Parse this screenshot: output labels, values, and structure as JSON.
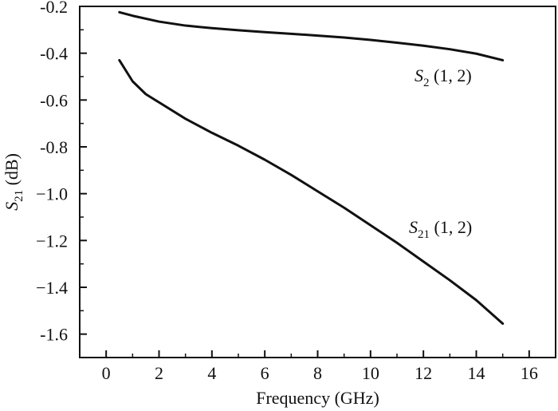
{
  "chart_data": {
    "type": "line",
    "xlabel": "Frequency (GHz)",
    "ylabel": {
      "main": "S",
      "sub": "21",
      "unit": " (dB)"
    },
    "xlim": [
      -1,
      17
    ],
    "ylim": [
      -1.7,
      -0.2
    ],
    "x_ticks": [
      0,
      2,
      4,
      6,
      8,
      10,
      12,
      14,
      16
    ],
    "x_tick_labels": [
      "0",
      "2",
      "4",
      "6",
      "8",
      "10",
      "12",
      "14",
      "16"
    ],
    "y_ticks": [
      -0.2,
      -0.4,
      -0.6,
      -0.8,
      -1.0,
      -1.2,
      -1.4,
      -1.6
    ],
    "y_tick_labels": [
      "-0.2",
      "-0.4",
      "-0.6",
      "-0.8",
      "−1.0",
      "−1.2",
      "−1.4",
      "-1.6"
    ],
    "grid": false,
    "series": [
      {
        "name": "S2 (1, 2)",
        "label": {
          "main": "S",
          "sub": "2",
          "rest": " (1, 2)"
        },
        "x": [
          0.5,
          1,
          2,
          3,
          4,
          5,
          6,
          7,
          8,
          9,
          10,
          11,
          12,
          13,
          14,
          15
        ],
        "y": [
          -0.225,
          -0.24,
          -0.265,
          -0.282,
          -0.293,
          -0.302,
          -0.31,
          -0.317,
          -0.325,
          -0.333,
          -0.343,
          -0.355,
          -0.368,
          -0.383,
          -0.402,
          -0.43
        ]
      },
      {
        "name": "S21 (1, 2)",
        "label": {
          "main": "S",
          "sub": "21",
          "rest": " (1, 2)"
        },
        "x": [
          0.5,
          1,
          1.5,
          2,
          3,
          4,
          5,
          6,
          7,
          8,
          9,
          10,
          11,
          12,
          13,
          14,
          15
        ],
        "y": [
          -0.43,
          -0.52,
          -0.575,
          -0.61,
          -0.68,
          -0.74,
          -0.795,
          -0.855,
          -0.92,
          -0.99,
          -1.06,
          -1.135,
          -1.21,
          -1.29,
          -1.37,
          -1.455,
          -1.555
        ]
      }
    ]
  }
}
